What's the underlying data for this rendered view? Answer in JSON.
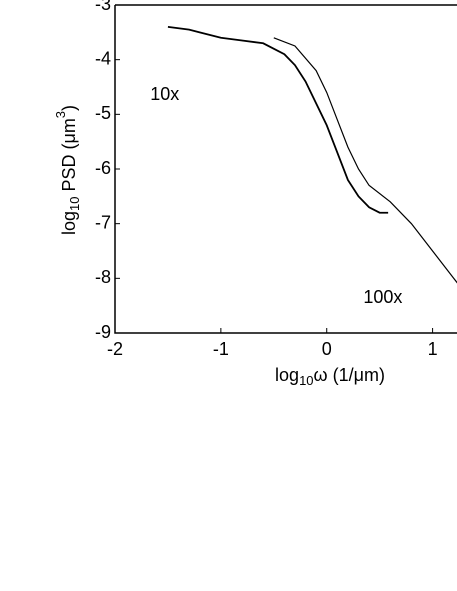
{
  "chart_data": {
    "type": "line",
    "xlabel": [
      "log",
      "10",
      "ω (1/μm)"
    ],
    "ylabel": [
      "log",
      "10",
      " PSD (μm",
      "3",
      ")"
    ],
    "xlim": [
      -2,
      1.24
    ],
    "ylim": [
      -9,
      -3
    ],
    "xticks": [
      -2,
      -1,
      0,
      1
    ],
    "yticks": [
      -9,
      -8,
      -7,
      -6,
      -5,
      -4,
      -3
    ],
    "series": [
      {
        "color": "#000000",
        "x": [
          -1.5,
          -1.3,
          -1.2,
          -1.0,
          -0.8,
          -0.6,
          -0.4,
          -0.3,
          -0.2,
          -0.1,
          0,
          0.1,
          0.2,
          0.3,
          0.4,
          0.5,
          0.58
        ],
        "values": [
          -3.4,
          -3.45,
          -3.5,
          -3.6,
          -3.65,
          -3.7,
          -3.9,
          -4.1,
          -4.4,
          -4.8,
          -5.2,
          -5.7,
          -6.2,
          -6.5,
          -6.7,
          -6.8,
          -6.8
        ]
      },
      {
        "color": "#000000",
        "x": [
          -0.5,
          -0.3,
          -0.1,
          0,
          0.1,
          0.2,
          0.3,
          0.4,
          0.6,
          0.8,
          1.0,
          1.2,
          1.24
        ],
        "values": [
          -3.6,
          -3.75,
          -4.2,
          -4.6,
          -5.1,
          -5.6,
          -6.0,
          -6.3,
          -6.6,
          -7.0,
          -7.5,
          -8.0,
          -8.1
        ]
      }
    ],
    "annotations": [
      {
        "text": "10x",
        "x": -1.53,
        "y": -4.65
      },
      {
        "text": "100x",
        "x": 0.53,
        "y": -8.36
      }
    ]
  }
}
